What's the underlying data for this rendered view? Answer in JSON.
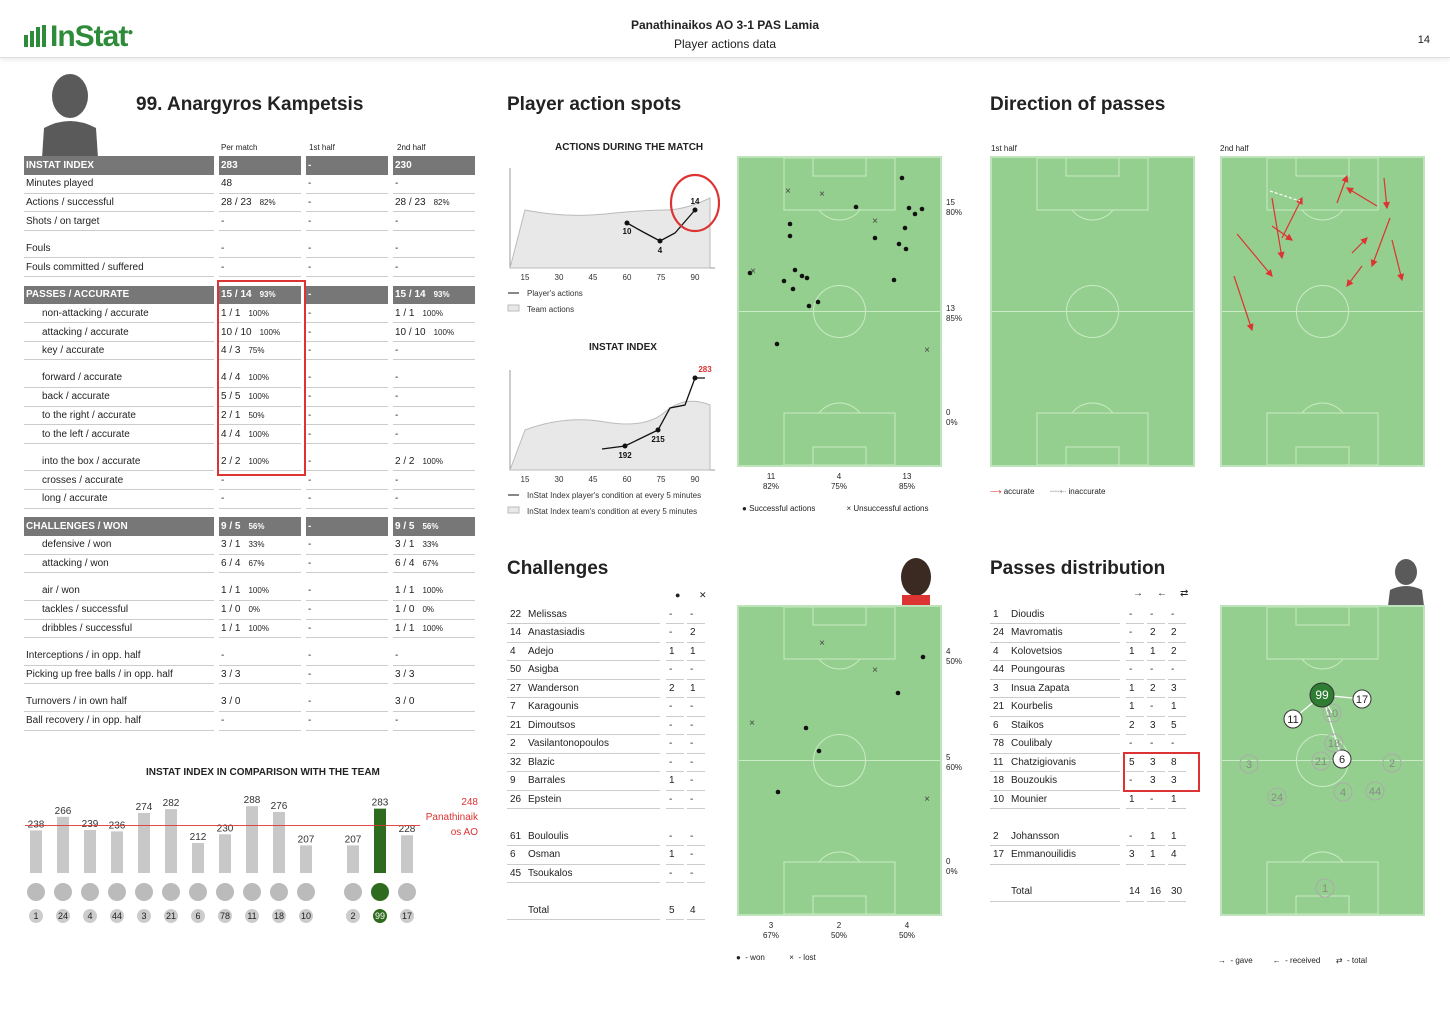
{
  "header": {
    "logo": "InStat",
    "match": "Panathinaikos AO 3-1 PAS Lamia",
    "subtitle": "Player actions data",
    "page": "14"
  },
  "player": {
    "name": "99. Anargyros Kampetsis",
    "col_headers": [
      "Per match",
      "1st half",
      "2nd half"
    ]
  },
  "stats": [
    {
      "type": "h",
      "label": "INSTAT INDEX",
      "c1": "283",
      "p1": "",
      "c2": "-",
      "c3": "230",
      "p3": ""
    },
    {
      "type": "n",
      "label": "Minutes played",
      "c1": "48",
      "p1": "",
      "c2": "-",
      "c3": "-",
      "p3": ""
    },
    {
      "type": "n",
      "label": "Actions / successful",
      "c1": "28 / 23",
      "p1": "82%",
      "c2": "-",
      "c3": "28 / 23",
      "p3": "82%"
    },
    {
      "type": "n",
      "label": "Shots / on target",
      "c1": "-",
      "p1": "",
      "c2": "-",
      "c3": "-",
      "p3": ""
    },
    {
      "type": "s"
    },
    {
      "type": "n",
      "label": "Fouls",
      "c1": "-",
      "p1": "",
      "c2": "-",
      "c3": "-",
      "p3": ""
    },
    {
      "type": "n",
      "label": "Fouls committed / suffered",
      "c1": "-",
      "p1": "",
      "c2": "-",
      "c3": "-",
      "p3": ""
    },
    {
      "type": "s"
    },
    {
      "type": "h",
      "label": "PASSES / ACCURATE",
      "c1": "15 / 14",
      "p1": "93%",
      "c2": "-",
      "c3": "15 / 14",
      "p3": "93%"
    },
    {
      "type": "i",
      "label": "non-attacking / accurate",
      "c1": "1 / 1",
      "p1": "100%",
      "c2": "-",
      "c3": "1 / 1",
      "p3": "100%"
    },
    {
      "type": "i",
      "label": "attacking / accurate",
      "c1": "10 / 10",
      "p1": "100%",
      "c2": "-",
      "c3": "10 / 10",
      "p3": "100%"
    },
    {
      "type": "i",
      "label": "key / accurate",
      "c1": "4 / 3",
      "p1": "75%",
      "c2": "-",
      "c3": "-",
      "p3": ""
    },
    {
      "type": "s"
    },
    {
      "type": "i",
      "label": "forward / accurate",
      "c1": "4 / 4",
      "p1": "100%",
      "c2": "-",
      "c3": "-",
      "p3": ""
    },
    {
      "type": "i",
      "label": "back / accurate",
      "c1": "5 / 5",
      "p1": "100%",
      "c2": "-",
      "c3": "-",
      "p3": ""
    },
    {
      "type": "i",
      "label": "to the right / accurate",
      "c1": "2 / 1",
      "p1": "50%",
      "c2": "-",
      "c3": "-",
      "p3": ""
    },
    {
      "type": "i",
      "label": "to the left / accurate",
      "c1": "4 / 4",
      "p1": "100%",
      "c2": "-",
      "c3": "-",
      "p3": ""
    },
    {
      "type": "s"
    },
    {
      "type": "i",
      "label": "into the box / accurate",
      "c1": "2 / 2",
      "p1": "100%",
      "c2": "-",
      "c3": "2 / 2",
      "p3": "100%"
    },
    {
      "type": "i",
      "label": "crosses / accurate",
      "c1": "-",
      "p1": "",
      "c2": "-",
      "c3": "-",
      "p3": ""
    },
    {
      "type": "i",
      "label": "long / accurate",
      "c1": "-",
      "p1": "",
      "c2": "-",
      "c3": "-",
      "p3": ""
    },
    {
      "type": "s"
    },
    {
      "type": "h",
      "label": "CHALLENGES / WON",
      "c1": "9 / 5",
      "p1": "56%",
      "c2": "-",
      "c3": "9 / 5",
      "p3": "56%"
    },
    {
      "type": "i",
      "label": "defensive / won",
      "c1": "3 / 1",
      "p1": "33%",
      "c2": "-",
      "c3": "3 / 1",
      "p3": "33%"
    },
    {
      "type": "i",
      "label": "attacking / won",
      "c1": "6 / 4",
      "p1": "67%",
      "c2": "-",
      "c3": "6 / 4",
      "p3": "67%"
    },
    {
      "type": "s"
    },
    {
      "type": "i",
      "label": "air / won",
      "c1": "1 / 1",
      "p1": "100%",
      "c2": "-",
      "c3": "1 / 1",
      "p3": "100%"
    },
    {
      "type": "i",
      "label": "tackles / successful",
      "c1": "1 / 0",
      "p1": "0%",
      "c2": "-",
      "c3": "1 / 0",
      "p3": "0%"
    },
    {
      "type": "i",
      "label": "dribbles / successful",
      "c1": "1 / 1",
      "p1": "100%",
      "c2": "-",
      "c3": "1 / 1",
      "p3": "100%"
    },
    {
      "type": "s"
    },
    {
      "type": "n",
      "label": "Interceptions / in opp. half",
      "c1": "-",
      "p1": "",
      "c2": "-",
      "c3": "-",
      "p3": ""
    },
    {
      "type": "n",
      "label": "Picking up free balls / in opp. half",
      "c1": "3 / 3",
      "p1": "",
      "c2": "-",
      "c3": "3 / 3",
      "p3": ""
    },
    {
      "type": "s"
    },
    {
      "type": "n",
      "label": "Turnovers / in own half",
      "c1": "3 / 0",
      "p1": "",
      "c2": "-",
      "c3": "3 / 0",
      "p3": ""
    },
    {
      "type": "n",
      "label": "Ball recovery / in opp. half",
      "c1": "-",
      "p1": "",
      "c2": "-",
      "c3": "-",
      "p3": ""
    }
  ],
  "comparison": {
    "title": "INSTAT INDEX IN COMPARISON WITH THE TEAM",
    "team_value": "248",
    "team_label": [
      "Panathinaik",
      "os AO"
    ],
    "players": [
      {
        "num": "1",
        "value": 238
      },
      {
        "num": "24",
        "value": 266
      },
      {
        "num": "4",
        "value": 239
      },
      {
        "num": "44",
        "value": 236
      },
      {
        "num": "3",
        "value": 274
      },
      {
        "num": "21",
        "value": 282
      },
      {
        "num": "6",
        "value": 212
      },
      {
        "num": "78",
        "value": 230
      },
      {
        "num": "11",
        "value": 288
      },
      {
        "num": "18",
        "value": 276
      },
      {
        "num": "10",
        "value": 207
      }
    ],
    "subs": [
      {
        "num": "2",
        "value": 207
      },
      {
        "num": "99",
        "value": 283,
        "highlight": true
      },
      {
        "num": "17",
        "value": 228
      }
    ]
  },
  "action_spots": {
    "title": "Player action spots",
    "chart1_title": "ACTIONS DURING THE MATCH",
    "chart1_xticks": [
      "15",
      "30",
      "45",
      "60",
      "75",
      "90"
    ],
    "chart1_points": [
      {
        "label": "10"
      },
      {
        "label": "4"
      },
      {
        "label": "14"
      }
    ],
    "chart1_legend": [
      "Player's actions",
      "Team actions"
    ],
    "chart2_title": "INSTAT INDEX",
    "chart2_xticks": [
      "15",
      "30",
      "45",
      "60",
      "75",
      "90"
    ],
    "chart2_points": [
      {
        "label": "192"
      },
      {
        "label": "215"
      },
      {
        "label": "283"
      }
    ],
    "chart2_legend": [
      "InStat Index player's condition at every 5 minutes",
      "InStat Index team's condition at every 5 minutes"
    ],
    "zones": [
      {
        "n": "15",
        "p": "80%"
      },
      {
        "n": "13",
        "p": "85%"
      },
      {
        "n": "0",
        "p": "0%"
      }
    ],
    "lanes": [
      {
        "n": "11",
        "p": "82%"
      },
      {
        "n": "4",
        "p": "75%"
      },
      {
        "n": "13",
        "p": "85%"
      }
    ],
    "legend": [
      "Successful actions",
      "Unsuccessful actions"
    ]
  },
  "direction": {
    "title": "Direction of passes",
    "half1": "1st half",
    "half2": "2nd half",
    "legend": [
      "accurate",
      "inaccurate"
    ]
  },
  "challenges": {
    "title": "Challenges",
    "rows": [
      {
        "num": "22",
        "name": "Melissas",
        "won": "-",
        "lost": "-"
      },
      {
        "num": "14",
        "name": "Anastasiadis",
        "won": "-",
        "lost": "2"
      },
      {
        "num": "4",
        "name": "Adejo",
        "won": "1",
        "lost": "1"
      },
      {
        "num": "50",
        "name": "Asigba",
        "won": "-",
        "lost": "-"
      },
      {
        "num": "27",
        "name": "Wanderson",
        "won": "2",
        "lost": "1"
      },
      {
        "num": "7",
        "name": "Karagounis",
        "won": "-",
        "lost": "-"
      },
      {
        "num": "21",
        "name": "Dimoutsos",
        "won": "-",
        "lost": "-"
      },
      {
        "num": "2",
        "name": "Vasilantonopoulos",
        "won": "-",
        "lost": "-"
      },
      {
        "num": "32",
        "name": "Blazic",
        "won": "-",
        "lost": "-"
      },
      {
        "num": "9",
        "name": "Barrales",
        "won": "1",
        "lost": "-"
      },
      {
        "num": "26",
        "name": "Epstein",
        "won": "-",
        "lost": "-"
      },
      {
        "blank": true
      },
      {
        "num": "61",
        "name": "Bouloulis",
        "won": "-",
        "lost": "-"
      },
      {
        "num": "6",
        "name": "Osman",
        "won": "1",
        "lost": "-"
      },
      {
        "num": "45",
        "name": "Tsoukalos",
        "won": "-",
        "lost": "-"
      },
      {
        "blank": true
      },
      {
        "num": "",
        "name": "Total",
        "won": "5",
        "lost": "4"
      }
    ],
    "zones": [
      {
        "n": "4",
        "p": "50%"
      },
      {
        "n": "5",
        "p": "60%"
      },
      {
        "n": "0",
        "p": "0%"
      }
    ],
    "lanes": [
      {
        "n": "3",
        "p": "67%"
      },
      {
        "n": "2",
        "p": "50%"
      },
      {
        "n": "4",
        "p": "50%"
      }
    ],
    "legend": [
      "- won",
      "- lost"
    ]
  },
  "distribution": {
    "title": "Passes distribution",
    "rows": [
      {
        "num": "1",
        "name": "Dioudis",
        "g": "-",
        "r": "-",
        "t": "-"
      },
      {
        "num": "24",
        "name": "Mavromatis",
        "g": "-",
        "r": "2",
        "t": "2"
      },
      {
        "num": "4",
        "name": "Kolovetsios",
        "g": "1",
        "r": "1",
        "t": "2"
      },
      {
        "num": "44",
        "name": "Poungouras",
        "g": "-",
        "r": "-",
        "t": "-"
      },
      {
        "num": "3",
        "name": "Insua Zapata",
        "g": "1",
        "r": "2",
        "t": "3"
      },
      {
        "num": "21",
        "name": "Kourbelis",
        "g": "1",
        "r": "-",
        "t": "1"
      },
      {
        "num": "6",
        "name": "Staikos",
        "g": "2",
        "r": "3",
        "t": "5"
      },
      {
        "num": "78",
        "name": "Coulibaly",
        "g": "-",
        "r": "-",
        "t": "-"
      },
      {
        "num": "11",
        "name": "Chatzigiovanis",
        "g": "5",
        "r": "3",
        "t": "8"
      },
      {
        "num": "18",
        "name": "Bouzoukis",
        "g": "-",
        "r": "3",
        "t": "3"
      },
      {
        "num": "10",
        "name": "Mounier",
        "g": "1",
        "r": "-",
        "t": "1"
      },
      {
        "blank": true
      },
      {
        "num": "2",
        "name": "Johansson",
        "g": "-",
        "r": "1",
        "t": "1"
      },
      {
        "num": "17",
        "name": "Emmanouilidis",
        "g": "3",
        "r": "1",
        "t": "4"
      },
      {
        "blank": true
      },
      {
        "num": "",
        "name": "Total",
        "g": "14",
        "r": "16",
        "t": "30"
      }
    ],
    "legend": [
      "- gave",
      "- received",
      "- total"
    ],
    "nodes": [
      "99",
      "17",
      "11",
      "10",
      "18",
      "6",
      "21",
      "2",
      "3",
      "24",
      "4",
      "44",
      "1"
    ]
  },
  "colors": {
    "pitch": "#95cf8f",
    "accent": "#2e8b3a",
    "red": "#d33",
    "header_bar": "#777"
  }
}
